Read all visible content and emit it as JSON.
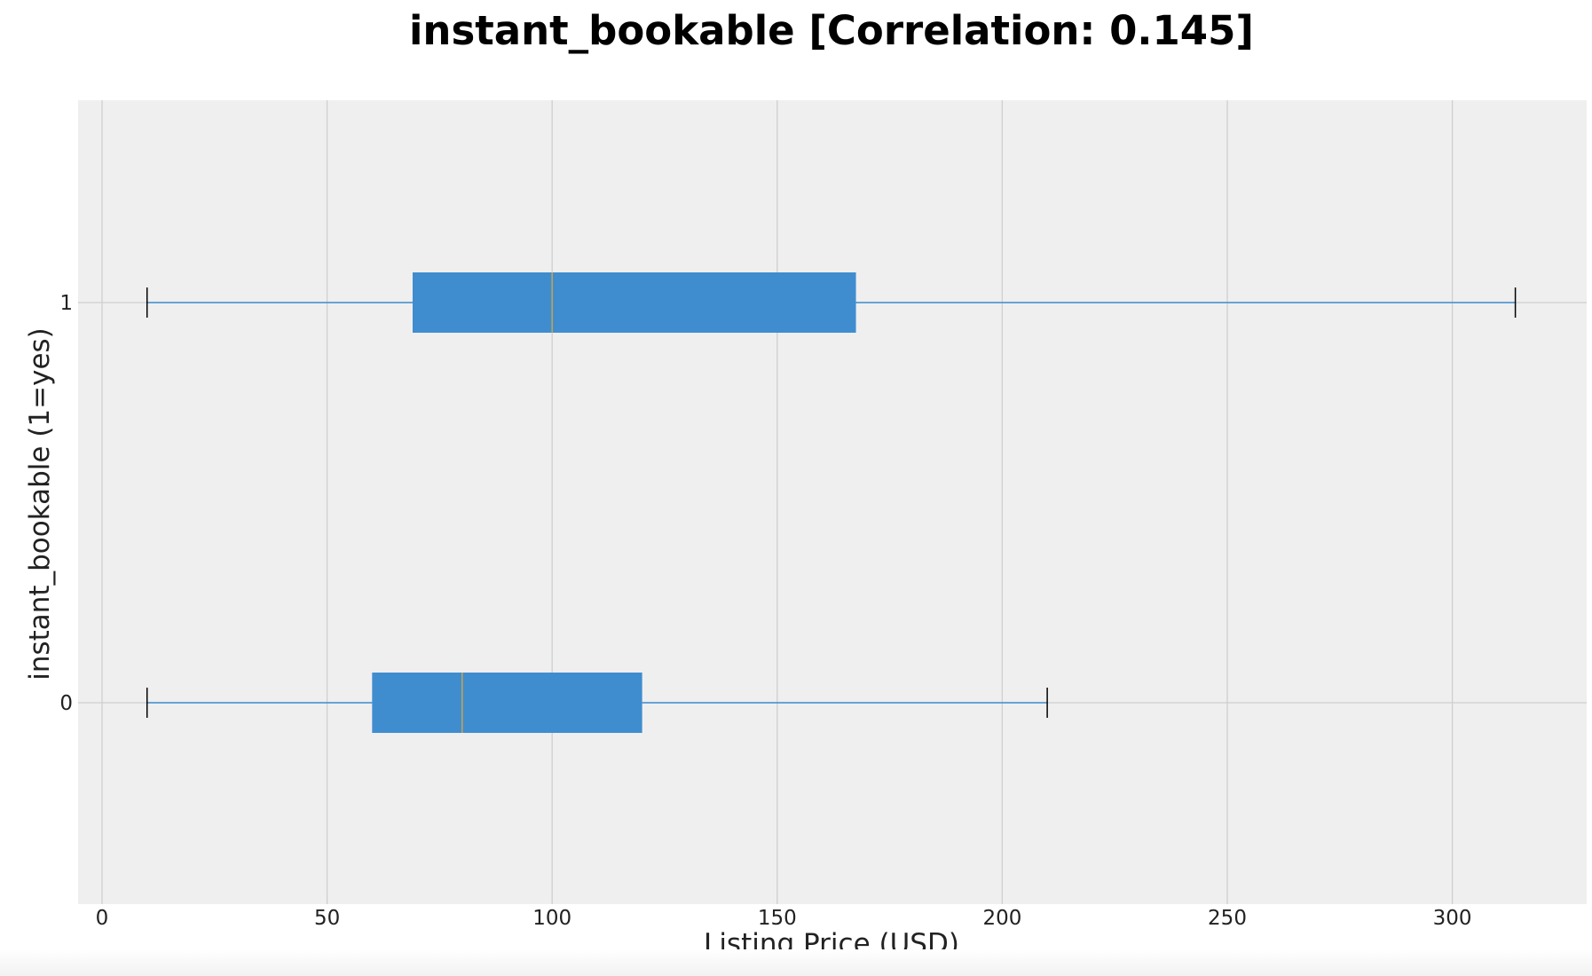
{
  "chart_data": {
    "type": "boxplot",
    "orientation": "horizontal",
    "title": "instant_bookable [Correlation: 0.145]",
    "xlabel": "Listing Price (USD)",
    "ylabel": "instant_bookable (1=yes)",
    "xlim": [
      -5,
      330
    ],
    "x_ticks": [
      0,
      50,
      100,
      150,
      200,
      250,
      300
    ],
    "categories": [
      "0",
      "1"
    ],
    "boxes": [
      {
        "category": "0",
        "whisker_low": 10,
        "q1": 60,
        "median": 80,
        "q3": 120,
        "whisker_high": 210
      },
      {
        "category": "1",
        "whisker_low": 10,
        "q1": 69,
        "median": 100,
        "q3": 167.5,
        "whisker_high": 314
      }
    ],
    "grid": true,
    "legend": "none",
    "colors": {
      "box_fill": "#3f8dcf",
      "whisker": "#3f8dcf",
      "median": "#c9a24a",
      "cap": "#000000",
      "plot_background": "#efefef",
      "grid": "#cfcfcf"
    }
  }
}
